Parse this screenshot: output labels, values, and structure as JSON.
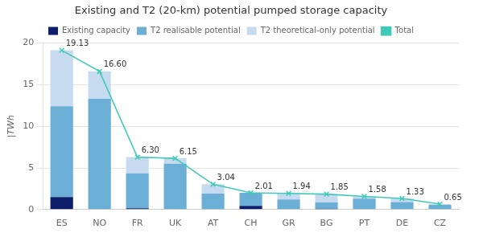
{
  "chart_data": {
    "type": "bar",
    "stacked": true,
    "title": "Existing and T2 (20-km) potential pumped storage capacity",
    "ylabel": "|TWh",
    "categories": [
      "ES",
      "NO",
      "FR",
      "UK",
      "AT",
      "CH",
      "GR",
      "BG",
      "PT",
      "DE",
      "CZ"
    ],
    "series": [
      {
        "name": "Existing capacity",
        "color": "#0d1f6b",
        "values": [
          1.5,
          0.0,
          0.15,
          0.0,
          0.0,
          0.45,
          0.0,
          0.1,
          0.0,
          0.0,
          0.0
        ]
      },
      {
        "name": "T2 realisable potential",
        "color": "#6baed6",
        "values": [
          10.9,
          13.3,
          4.2,
          5.5,
          1.9,
          1.55,
          1.2,
          0.75,
          1.3,
          0.9,
          0.55
        ]
      },
      {
        "name": "T2 theoretical-only potential",
        "color": "#c6dbef",
        "values": [
          6.73,
          3.3,
          1.95,
          0.65,
          1.14,
          0.01,
          0.74,
          1.0,
          0.28,
          0.43,
          0.1
        ]
      },
      {
        "name": "Total",
        "type": "line",
        "color": "#41c9b8",
        "marker": "x",
        "data_labels": true,
        "values": [
          19.13,
          16.6,
          6.3,
          6.15,
          3.04,
          2.01,
          1.94,
          1.85,
          1.58,
          1.33,
          0.65
        ],
        "value_labels": [
          "19.13",
          "16.60",
          "6.30",
          "6.15",
          "3.04",
          "2.01",
          "1.94",
          "1.85",
          "1.58",
          "1.33",
          "0.65"
        ]
      }
    ],
    "ylim": [
      0,
      20
    ],
    "yticks": [
      0,
      5,
      10,
      15,
      20
    ],
    "grid": true,
    "legend": "top"
  }
}
